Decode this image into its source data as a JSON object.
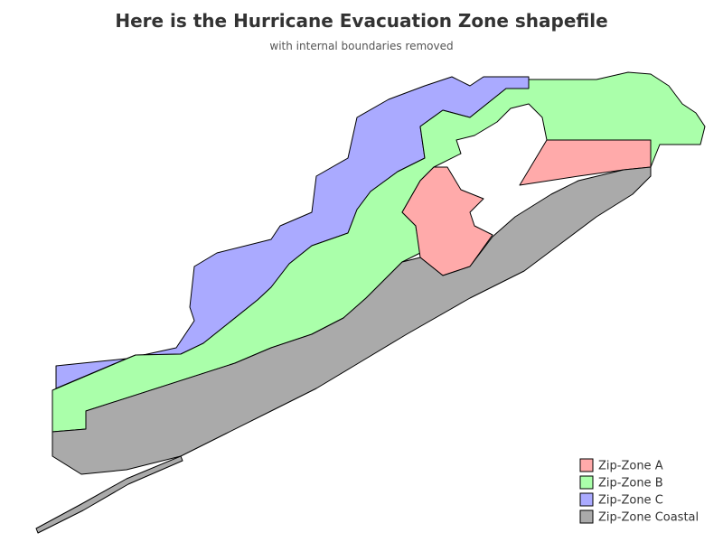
{
  "title": "Here is the Hurricane Evacuation Zone shapefile",
  "subtitle": "with internal boundaries removed",
  "legend": [
    {
      "label": "Zip-Zone A",
      "color": "#ffaaaa"
    },
    {
      "label": "Zip-Zone B",
      "color": "#aaffaa"
    },
    {
      "label": "Zip-Zone C",
      "color": "#aaaaff"
    },
    {
      "label": "Zip-Zone Coastal",
      "color": "#aaaaaa"
    }
  ]
}
